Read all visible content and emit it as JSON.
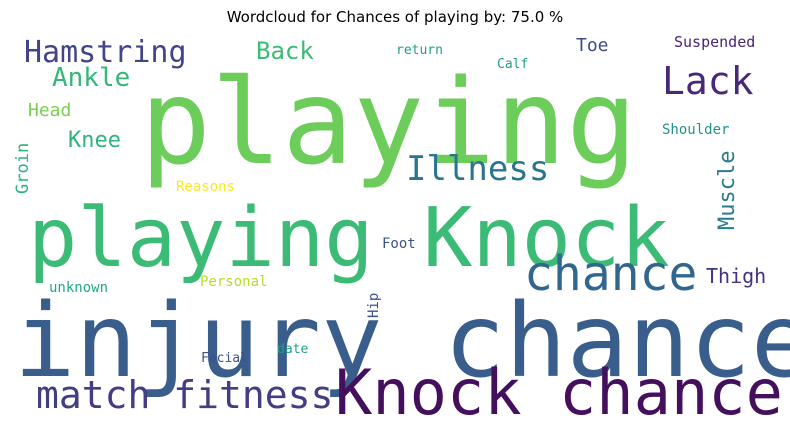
{
  "chart_data": {
    "type": "wordcloud",
    "title": "Wordcloud for Chances of playing by: 75.0 %",
    "words": [
      {
        "text": "playing",
        "weight": 1.0,
        "color": "#6ccd5a"
      },
      {
        "text": "playing Knock",
        "weight": 0.72,
        "color": "#3bbb75"
      },
      {
        "text": "injury chance",
        "weight": 0.85,
        "color": "#3a5e8c"
      },
      {
        "text": "Knock chance",
        "weight": 0.55,
        "color": "#440f5c"
      },
      {
        "text": "chance",
        "weight": 0.42,
        "color": "#31668e"
      },
      {
        "text": "match fitness",
        "weight": 0.34,
        "color": "#433d84"
      },
      {
        "text": "Lack",
        "weight": 0.32,
        "color": "#482878"
      },
      {
        "text": "Illness",
        "weight": 0.3,
        "color": "#2a768e"
      },
      {
        "text": "Hamstring",
        "weight": 0.27,
        "color": "#414487"
      },
      {
        "text": "Ankle",
        "weight": 0.22,
        "color": "#35b779"
      },
      {
        "text": "Back",
        "weight": 0.2,
        "color": "#3cbb75"
      },
      {
        "text": "Knee",
        "weight": 0.18,
        "color": "#2fb47c"
      },
      {
        "text": "Muscle",
        "weight": 0.18,
        "color": "#297b8e"
      },
      {
        "text": "Thigh",
        "weight": 0.15,
        "color": "#46337e"
      },
      {
        "text": "Head",
        "weight": 0.14,
        "color": "#7ad151"
      },
      {
        "text": "Toe",
        "weight": 0.14,
        "color": "#3e4a89"
      },
      {
        "text": "Groin",
        "weight": 0.13,
        "color": "#2db27d"
      },
      {
        "text": "Suspended",
        "weight": 0.11,
        "color": "#482475"
      },
      {
        "text": "Shoulder",
        "weight": 0.1,
        "color": "#21918c"
      },
      {
        "text": "Reasons",
        "weight": 0.1,
        "color": "#fde725"
      },
      {
        "text": "Personal",
        "weight": 0.1,
        "color": "#b5de2b"
      },
      {
        "text": "unknown",
        "weight": 0.1,
        "color": "#22a884"
      },
      {
        "text": "Foot",
        "weight": 0.1,
        "color": "#3b528b"
      },
      {
        "text": "Hip",
        "weight": 0.09,
        "color": "#3b528b"
      },
      {
        "text": "return",
        "weight": 0.09,
        "color": "#1fa088"
      },
      {
        "text": "Calf",
        "weight": 0.09,
        "color": "#1f9e89"
      },
      {
        "text": "Facial",
        "weight": 0.09,
        "color": "#3b528b"
      },
      {
        "text": "date",
        "weight": 0.09,
        "color": "#1f9e89"
      }
    ]
  }
}
